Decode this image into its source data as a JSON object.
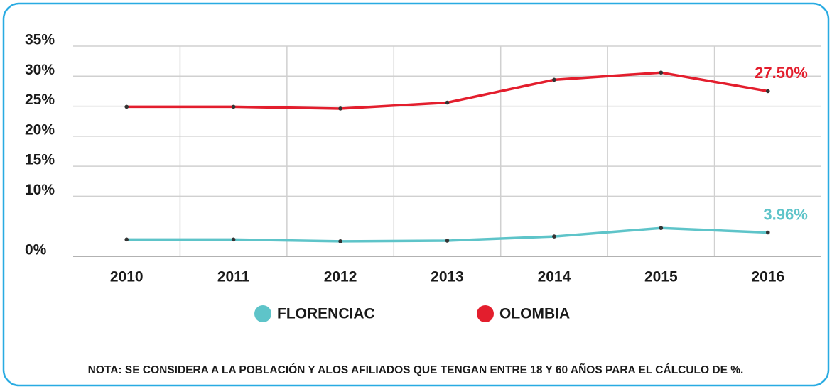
{
  "chart_data": {
    "type": "line",
    "categories": [
      "2010",
      "2011",
      "2012",
      "2013",
      "2014",
      "2015",
      "2016"
    ],
    "series": [
      {
        "name": "FLORENCIAC",
        "color": "#5ec4c9",
        "values": [
          2.8,
          2.8,
          2.5,
          2.6,
          3.3,
          4.7,
          3.96
        ],
        "value_labels": [
          null,
          null,
          null,
          null,
          null,
          null,
          "3.96%"
        ]
      },
      {
        "name": "OLOMBIA",
        "color": "#e31e2d",
        "values": [
          24.9,
          24.9,
          24.6,
          25.6,
          29.4,
          30.6,
          27.5
        ],
        "value_labels": [
          null,
          null,
          null,
          null,
          null,
          null,
          "27.50%"
        ]
      }
    ],
    "ylim": [
      0,
      35
    ],
    "yticks": [
      {
        "value": 0,
        "label": "0%"
      },
      {
        "value": 10,
        "label": "10%"
      },
      {
        "value": 15,
        "label": "15%"
      },
      {
        "value": 20,
        "label": "20%"
      },
      {
        "value": 25,
        "label": "25%"
      },
      {
        "value": 30,
        "label": "30%"
      },
      {
        "value": 35,
        "label": "35%"
      }
    ],
    "grid": true,
    "note": "NOTA: SE CONSIDERA A LA POBLACIÓN Y ALOS AFILIADOS QUE TENGAN ENTRE 18 Y 60 AÑOS PARA EL CÁLCULO DE %."
  }
}
